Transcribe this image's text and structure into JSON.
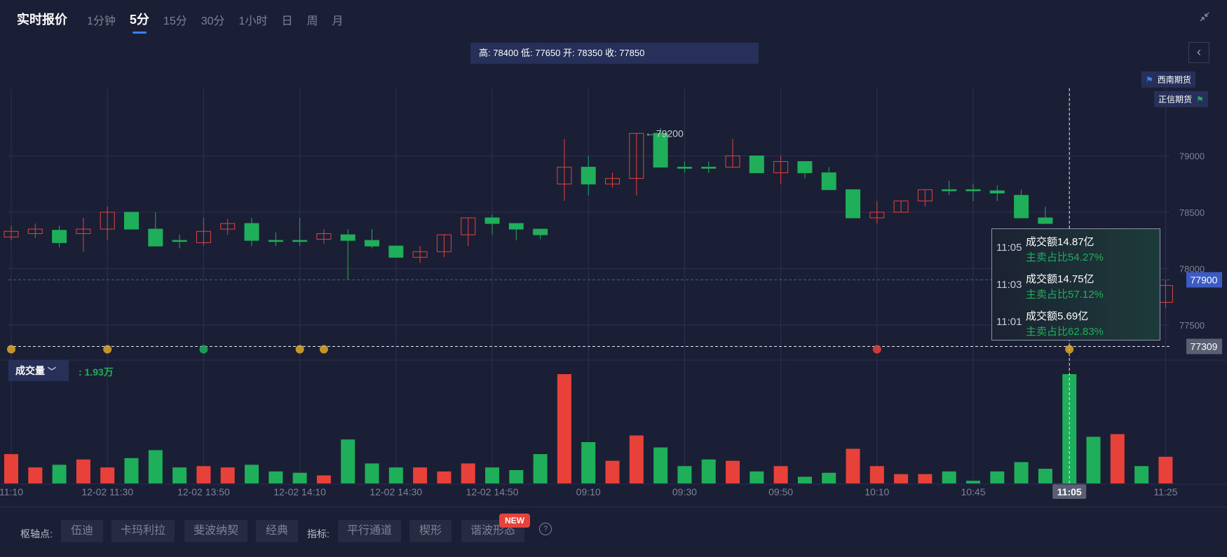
{
  "header": {
    "title": "实时报价",
    "tabs": [
      "1分钟",
      "5分",
      "15分",
      "30分",
      "1小时",
      "日",
      "周",
      "月"
    ],
    "active_tab": "5分"
  },
  "ohlc_text": "高: 78400 低: 77650 开: 78350 收: 77850",
  "brokers": [
    "西南期货",
    "正信期货"
  ],
  "volume_indicator": {
    "label": "成交量",
    "value": ": 1.93万"
  },
  "price_labels": {
    "current": "77900",
    "crosshair": "77309",
    "peak": "79200",
    "partial_right": "0"
  },
  "tooltip": [
    {
      "time": "11:05",
      "amount": "成交额14.87亿",
      "ratio": "主卖占比54.27%"
    },
    {
      "time": "11:03",
      "amount": "成交额14.75亿",
      "ratio": "主卖占比57.12%"
    },
    {
      "time": "11:01",
      "amount": "成交额5.69亿",
      "ratio": "主卖占比62.83%"
    }
  ],
  "bottom_bar": {
    "pivot_label": "枢轴点:",
    "pivot_buttons": [
      "伍迪",
      "卡玛利拉",
      "斐波纳契",
      "经典"
    ],
    "indicator_label": "指标:",
    "indicator_buttons": [
      "平行通道",
      "楔形",
      "谐波形态"
    ],
    "new_badge": "NEW",
    "help_glyph": "?"
  },
  "colors": {
    "up": "#e8413a",
    "down": "#1fae5a",
    "background": "#1b1f36",
    "accent": "#3b82f6"
  },
  "chart_data": {
    "type": "candlestick",
    "y_ticks": [
      79000,
      78500,
      78000,
      77500
    ],
    "ylim": [
      77200,
      79600
    ],
    "x_labels": [
      "11:10",
      "12-02 11:30",
      "12-02 13:50",
      "12-02 14:10",
      "12-02 14:30",
      "12-02 14:50",
      "09:10",
      "09:30",
      "09:50",
      "10:10",
      "10:45",
      "11:05",
      "11:25"
    ],
    "x_label_index": [
      0,
      4,
      8,
      12,
      16,
      20,
      24,
      28,
      32,
      36,
      40,
      44,
      48
    ],
    "highlight_x_label": "11:05",
    "reference_price": 77900,
    "crosshair_price": 77309,
    "crosshair_index": 44,
    "candles": [
      {
        "o": 78280,
        "c": 78330,
        "h": 78380,
        "l": 78250,
        "v": 22
      },
      {
        "o": 78310,
        "c": 78350,
        "h": 78400,
        "l": 78270,
        "v": 12
      },
      {
        "o": 78340,
        "c": 78230,
        "h": 78380,
        "l": 78190,
        "v": 14
      },
      {
        "o": 78310,
        "c": 78350,
        "h": 78450,
        "l": 78150,
        "v": 18
      },
      {
        "o": 78350,
        "c": 78500,
        "h": 78550,
        "l": 78250,
        "v": 12
      },
      {
        "o": 78500,
        "c": 78350,
        "h": 78500,
        "l": 78350,
        "v": 19
      },
      {
        "o": 78350,
        "c": 78200,
        "h": 78500,
        "l": 78200,
        "v": 25
      },
      {
        "o": 78250,
        "c": 78240,
        "h": 78300,
        "l": 78180,
        "v": 12
      },
      {
        "o": 78230,
        "c": 78330,
        "h": 78450,
        "l": 78200,
        "v": 13
      },
      {
        "o": 78350,
        "c": 78400,
        "h": 78440,
        "l": 78300,
        "v": 12
      },
      {
        "o": 78400,
        "c": 78250,
        "h": 78450,
        "l": 78200,
        "v": 14
      },
      {
        "o": 78250,
        "c": 78240,
        "h": 78320,
        "l": 78200,
        "v": 9
      },
      {
        "o": 78250,
        "c": 78240,
        "h": 78450,
        "l": 78200,
        "v": 8
      },
      {
        "o": 78260,
        "c": 78310,
        "h": 78350,
        "l": 78220,
        "v": 6
      },
      {
        "o": 78300,
        "c": 78250,
        "h": 78350,
        "l": 77900,
        "v": 33
      },
      {
        "o": 78250,
        "c": 78200,
        "h": 78350,
        "l": 78180,
        "v": 15
      },
      {
        "o": 78200,
        "c": 78100,
        "h": 78200,
        "l": 78100,
        "v": 12
      },
      {
        "o": 78100,
        "c": 78150,
        "h": 78200,
        "l": 78050,
        "v": 12
      },
      {
        "o": 78150,
        "c": 78300,
        "h": 78300,
        "l": 78100,
        "v": 9
      },
      {
        "o": 78300,
        "c": 78450,
        "h": 78450,
        "l": 78200,
        "v": 15
      },
      {
        "o": 78450,
        "c": 78400,
        "h": 78480,
        "l": 78300,
        "v": 12
      },
      {
        "o": 78400,
        "c": 78350,
        "h": 78400,
        "l": 78250,
        "v": 10
      },
      {
        "o": 78350,
        "c": 78300,
        "h": 78350,
        "l": 78260,
        "v": 22
      },
      {
        "o": 78750,
        "c": 78900,
        "h": 79150,
        "l": 78600,
        "v": 82
      },
      {
        "o": 78900,
        "c": 78750,
        "h": 79000,
        "l": 78650,
        "v": 31
      },
      {
        "o": 78750,
        "c": 78800,
        "h": 78850,
        "l": 78720,
        "v": 17
      },
      {
        "o": 78800,
        "c": 79200,
        "h": 79200,
        "l": 78650,
        "v": 36
      },
      {
        "o": 79200,
        "c": 78900,
        "h": 79250,
        "l": 78900,
        "v": 27
      },
      {
        "o": 78900,
        "c": 78890,
        "h": 78950,
        "l": 78850,
        "v": 13
      },
      {
        "o": 78900,
        "c": 78890,
        "h": 78950,
        "l": 78850,
        "v": 18
      },
      {
        "o": 78900,
        "c": 79000,
        "h": 79150,
        "l": 78900,
        "v": 17
      },
      {
        "o": 79000,
        "c": 78850,
        "h": 79000,
        "l": 78850,
        "v": 9
      },
      {
        "o": 78850,
        "c": 78950,
        "h": 79000,
        "l": 78750,
        "v": 13
      },
      {
        "o": 78950,
        "c": 78850,
        "h": 78950,
        "l": 78800,
        "v": 5
      },
      {
        "o": 78850,
        "c": 78700,
        "h": 78900,
        "l": 78700,
        "v": 8
      },
      {
        "o": 78700,
        "c": 78450,
        "h": 78700,
        "l": 78450,
        "v": 26
      },
      {
        "o": 78450,
        "c": 78500,
        "h": 78600,
        "l": 78400,
        "v": 13
      },
      {
        "o": 78500,
        "c": 78600,
        "h": 78600,
        "l": 78500,
        "v": 7
      },
      {
        "o": 78600,
        "c": 78700,
        "h": 78700,
        "l": 78550,
        "v": 7
      },
      {
        "o": 78700,
        "c": 78690,
        "h": 78780,
        "l": 78650,
        "v": 9
      },
      {
        "o": 78700,
        "c": 78690,
        "h": 78750,
        "l": 78600,
        "v": 2
      },
      {
        "o": 78690,
        "c": 78670,
        "h": 78740,
        "l": 78600,
        "v": 9
      },
      {
        "o": 78650,
        "c": 78450,
        "h": 78700,
        "l": 78450,
        "v": 16
      },
      {
        "o": 78450,
        "c": 78400,
        "h": 78550,
        "l": 78400,
        "v": 11
      },
      {
        "o": 78350,
        "c": 77700,
        "h": 78350,
        "l": 77700,
        "v": 82
      },
      {
        "o": 77700,
        "c": 77750,
        "h": 77800,
        "l": 77650,
        "v": 35
      },
      {
        "o": 77750,
        "c": 77800,
        "h": 77850,
        "l": 77700,
        "v": 37
      },
      {
        "o": 77800,
        "c": 77700,
        "h": 77850,
        "l": 77650,
        "v": 13
      },
      {
        "o": 77700,
        "c": 77850,
        "h": 77900,
        "l": 77650,
        "v": 20
      }
    ],
    "volume_colors": [
      "up",
      "up",
      "down",
      "up",
      "up",
      "down",
      "down",
      "down",
      "up",
      "up",
      "down",
      "down",
      "down",
      "up",
      "down",
      "down",
      "down",
      "up",
      "up",
      "up",
      "down",
      "down",
      "down",
      "up",
      "down",
      "up",
      "up",
      "down",
      "down",
      "down",
      "up",
      "down",
      "up",
      "down",
      "down",
      "up",
      "up",
      "up",
      "up",
      "down",
      "down",
      "down",
      "down",
      "down",
      "down",
      "down",
      "up",
      "down",
      "up"
    ]
  }
}
